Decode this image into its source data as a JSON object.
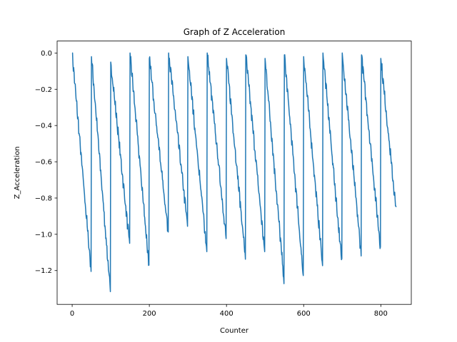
{
  "chart_data": {
    "type": "line",
    "title": "Graph of Z Acceleration",
    "xlabel": "Counter",
    "ylabel": "Z_Acceleration",
    "xlim": [
      -39,
      879
    ],
    "ylim": [
      -1.3865,
      0.066
    ],
    "xticks": [
      0,
      200,
      400,
      600,
      800
    ],
    "yticks": [
      0.0,
      -0.2,
      -0.4,
      -0.6,
      -0.8,
      -1.0,
      -1.2
    ],
    "grid": false,
    "line_color": "#1f77b4",
    "cycles": [
      {
        "start": 0,
        "end": 49,
        "start_y": 0.0,
        "end_y": -1.2
      },
      {
        "start": 50,
        "end": 99,
        "start_y": -0.02,
        "end_y": -1.32
      },
      {
        "start": 100,
        "end": 149,
        "start_y": -0.05,
        "end_y": -1.06
      },
      {
        "start": 150,
        "end": 199,
        "start_y": 0.0,
        "end_y": -1.17
      },
      {
        "start": 200,
        "end": 249,
        "start_y": -0.03,
        "end_y": -0.99
      },
      {
        "start": 250,
        "end": 299,
        "start_y": 0.0,
        "end_y": -0.95
      },
      {
        "start": 300,
        "end": 349,
        "start_y": -0.02,
        "end_y": -1.09
      },
      {
        "start": 350,
        "end": 399,
        "start_y": 0.0,
        "end_y": -1.02
      },
      {
        "start": 400,
        "end": 449,
        "start_y": -0.03,
        "end_y": -1.13
      },
      {
        "start": 450,
        "end": 499,
        "start_y": -0.01,
        "end_y": -1.1
      },
      {
        "start": 500,
        "end": 549,
        "start_y": -0.03,
        "end_y": -1.26
      },
      {
        "start": 550,
        "end": 599,
        "start_y": -0.01,
        "end_y": -1.23
      },
      {
        "start": 600,
        "end": 649,
        "start_y": -0.02,
        "end_y": -1.17
      },
      {
        "start": 650,
        "end": 699,
        "start_y": 0.0,
        "end_y": -1.16
      },
      {
        "start": 700,
        "end": 749,
        "start_y": 0.0,
        "end_y": -1.11
      },
      {
        "start": 750,
        "end": 799,
        "start_y": -0.01,
        "end_y": -1.07
      },
      {
        "start": 800,
        "end": 840,
        "start_y": -0.03,
        "end_y": -0.88
      }
    ]
  }
}
